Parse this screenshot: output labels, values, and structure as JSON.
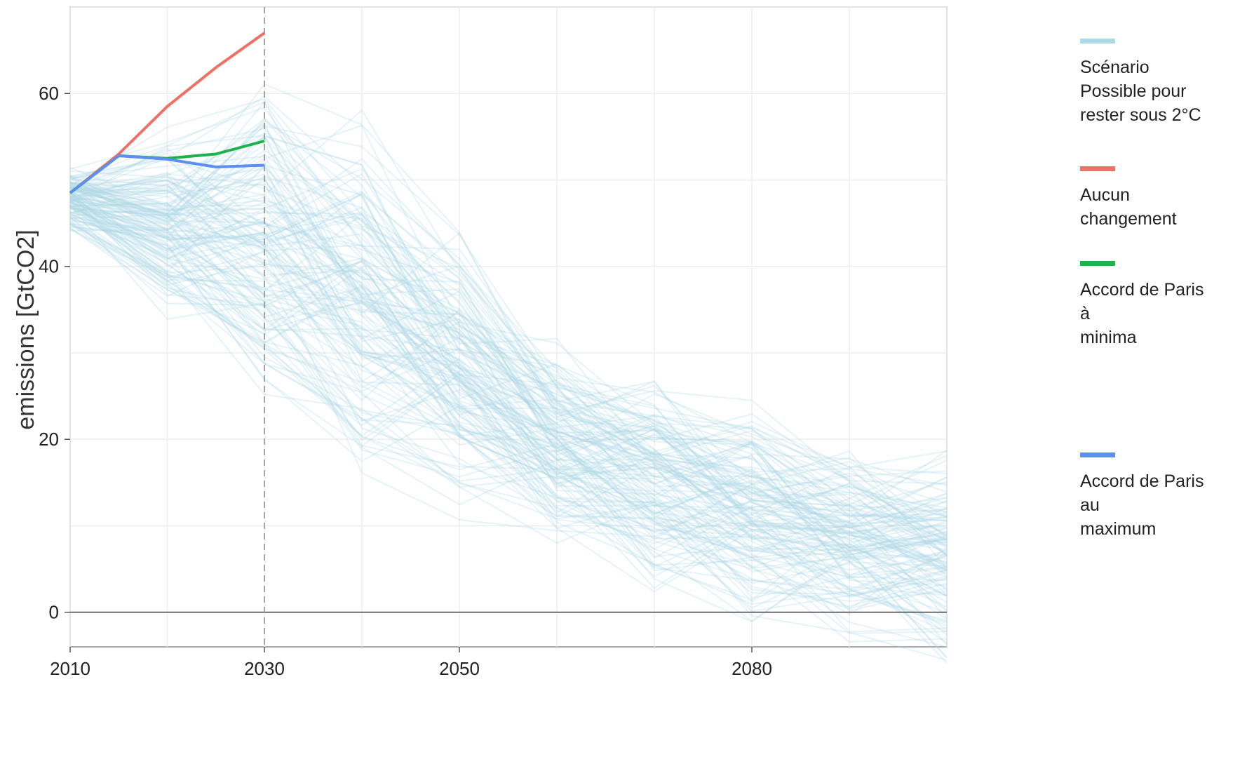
{
  "chart_data": {
    "type": "line",
    "xlabel": "",
    "ylabel": "emissions [GtCO2]",
    "xlim": [
      2010,
      2100
    ],
    "ylim": [
      -4,
      70
    ],
    "x_ticks": [
      2010,
      2030,
      2050,
      2080
    ],
    "x_tick_labels": [
      "2010",
      "2030",
      "2050",
      "2080"
    ],
    "y_ticks": [
      0,
      20,
      40,
      60
    ],
    "y_tick_labels": [
      "0",
      "20",
      "40",
      "60"
    ],
    "reference_lines": {
      "vertical_dashed_x": 2030,
      "horizontal_y": 0
    },
    "grid": true,
    "legend_position": "right",
    "background_band": {
      "name": "Scénario Possible pour rester sous 2°C",
      "color": "#add8e6",
      "x": [
        2010,
        2020,
        2030,
        2040,
        2050,
        2060,
        2070,
        2080,
        2090,
        2100
      ],
      "y_low": [
        43,
        30,
        22,
        15,
        10,
        5,
        0,
        -3,
        -4,
        -4
      ],
      "y_high": [
        52,
        57,
        68,
        63,
        53,
        36,
        33,
        30,
        27,
        25
      ],
      "y_center": [
        48,
        47,
        42,
        35,
        27,
        20,
        15,
        10,
        6,
        3
      ]
    },
    "series": [
      {
        "name": "Aucun changement",
        "color": "#f07068",
        "x": [
          2010,
          2015,
          2020,
          2025,
          2030
        ],
        "y": [
          48.5,
          53,
          58.5,
          63,
          67
        ]
      },
      {
        "name": "Accord de Paris à minima",
        "color": "#1db34a",
        "x": [
          2010,
          2015,
          2020,
          2025,
          2030
        ],
        "y": [
          48.5,
          52.8,
          52.5,
          53,
          54.5
        ]
      },
      {
        "name": "Accord de Paris au maximum",
        "color": "#5b8ff0",
        "x": [
          2010,
          2015,
          2020,
          2025,
          2030
        ],
        "y": [
          48.5,
          52.8,
          52.4,
          51.5,
          51.7
        ]
      }
    ]
  },
  "legend": [
    {
      "label": "Scénario\nPossible pour\nrester sous 2°C",
      "color": "#add8e6"
    },
    {
      "label": "Aucun\nchangement",
      "color": "#f07068"
    },
    {
      "label": "Accord de Paris\nà\nminima",
      "color": "#1db34a"
    },
    {
      "label": "Accord de Paris\nau\nmaximum",
      "color": "#5b8ff0"
    }
  ]
}
